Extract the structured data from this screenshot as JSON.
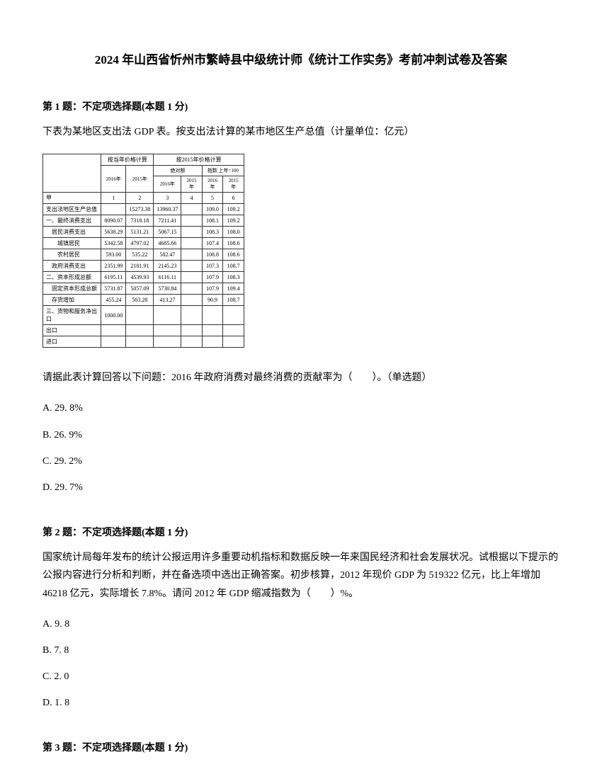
{
  "title": "2024 年山西省忻州市繁峙县中级统计师《统计工作实务》考前冲刺试卷及答案",
  "q1": {
    "header": "第 1 题：不定项选择题(本题 1 分)",
    "intro": "下表为某地区支出法 GDP 表。按支出法计算的某市地区生产总值（计量单位：亿元）",
    "table": {
      "header1_col2": "按当年价格计算",
      "header1_col3": "按2015年价格计算",
      "header2_sub1": "绝对额",
      "header2_sub2": "指数 上年=100",
      "year_2016": "2016年",
      "year_2015": "2015年",
      "year_2016_s": "2016年",
      "year_2015_s": "2015年",
      "year_2016_i": "2016年",
      "year_2015_i": "2015年",
      "num_row": [
        "1",
        "2",
        "3",
        "4",
        "5",
        "6"
      ],
      "r0_label": "甲",
      "rows": [
        {
          "label": "支出法地区生产总值",
          "v": [
            "",
            "15273.38",
            "13960.37",
            "",
            "109.0",
            "109.2"
          ]
        },
        {
          "label": "一、最终消费支出",
          "v": [
            "8090.07",
            "7318.18",
            "7211.41",
            "",
            "108.1",
            "109.2"
          ]
        },
        {
          "label": "　居民消费支出",
          "v": [
            "5638.29",
            "5131.21",
            "5067.15",
            "",
            "108.3",
            "108.0"
          ]
        },
        {
          "label": "　　城镇居民",
          "v": [
            "5342.58",
            "4797.02",
            "4685.66",
            "",
            "107.4",
            "108.6"
          ]
        },
        {
          "label": "　　农村居民",
          "v": [
            "593.00",
            "535.22",
            "582.47",
            "",
            "108.8",
            "108.6"
          ]
        },
        {
          "label": "　政府消费支出",
          "v": [
            "2351.99",
            "2181.91",
            "2145.23",
            "",
            "107.3",
            "108.7"
          ]
        },
        {
          "label": "二、资本形成总额",
          "v": [
            "6195.11",
            "4539.93",
            "6116.11",
            "",
            "107.9",
            "108.3"
          ]
        },
        {
          "label": "　固定资本形成总额",
          "v": [
            "5731.87",
            "5057.09",
            "5730.84",
            "",
            "107.9",
            "109.4"
          ]
        },
        {
          "label": "　存货增加",
          "v": [
            "455.24",
            "503.28",
            "413.27",
            "",
            "90.9",
            "108.7"
          ]
        },
        {
          "label": "三、货物和服务净出口",
          "v": [
            "1000.00",
            "",
            "",
            "",
            "",
            ""
          ]
        },
        {
          "label": "出口",
          "v": [
            "",
            "",
            "",
            "",
            "",
            ""
          ]
        },
        {
          "label": "进口",
          "v": [
            "",
            "",
            "",
            "",
            "",
            ""
          ]
        }
      ]
    },
    "question": "请据此表计算回答以下问题：2016 年政府消费对最终消费的贡献率为（　　）。（单选题）",
    "options": [
      "A. 29. 8%",
      "B. 26. 9%",
      "C. 29. 2%",
      "D. 29. 7%"
    ]
  },
  "q2": {
    "header": "第 2 题：不定项选择题(本题 1 分)",
    "text": "国家统计局每年发布的统计公报运用许多重要动机指标和数据反映一年来国民经济和社会发展状况。试根据以下提示的公报内容进行分析和判断，并在备选项中选出正确答案。初步核算，2012 年现价 GDP 为 519322 亿元，比上年增加 46218 亿元，实际增长 7.8%。请问 2012 年 GDP 缩减指数为（　　）%。",
    "options": [
      "A. 9. 8",
      "B. 7. 8",
      "C. 2. 0",
      "D. 1. 8"
    ]
  },
  "q3": {
    "header": "第 3 题：不定项选择题(本题 1 分)"
  }
}
